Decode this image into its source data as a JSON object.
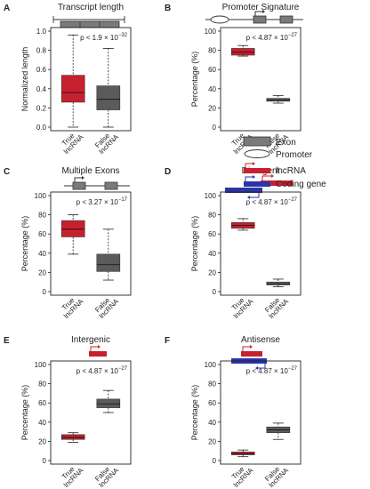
{
  "colors": {
    "lncrna": "#c8202f",
    "coding": "#2b35a8",
    "box_false": "#5b5b5b",
    "exon": "#7a7a7a"
  },
  "legend": {
    "exon": "Exon",
    "promoter": "Promoter",
    "lncrna": "lncRNA",
    "coding": "Coding gene"
  },
  "chart_data": [
    {
      "panel": "A",
      "type": "box",
      "title": "Transcript length",
      "ylabel": "Normalized length",
      "ylim": [
        0,
        1.0
      ],
      "yticks": [
        "0.0",
        "0.2",
        "0.4",
        "0.6",
        "0.8",
        "1.0"
      ],
      "categories": [
        "True lncRNA",
        "False lncRNA"
      ],
      "pvalue": "p < 1.9 × 10",
      "exponent": "−32",
      "boxes": [
        {
          "q1": 0.26,
          "median": 0.36,
          "q3": 0.54,
          "whisker_low": 0.0,
          "whisker_high": 0.96,
          "color": "#c8202f"
        },
        {
          "q1": 0.18,
          "median": 0.29,
          "q3": 0.43,
          "whisker_low": 0.0,
          "whisker_high": 0.82,
          "color": "#5b5b5b"
        }
      ],
      "schematic": "exons"
    },
    {
      "panel": "B",
      "type": "box",
      "title": "Promoter Signature",
      "ylabel": "Percentage (%)",
      "ylim": [
        0,
        100
      ],
      "yticks": [
        "0",
        "20",
        "40",
        "60",
        "80",
        "100"
      ],
      "categories": [
        "True lncRNA",
        "False lncRNA"
      ],
      "pvalue": "p < 4.87 × 10",
      "exponent": "−27",
      "boxes": [
        {
          "q1": 75,
          "median": 78,
          "q3": 82,
          "whisker_low": 74,
          "whisker_high": 85,
          "color": "#c8202f"
        },
        {
          "q1": 27,
          "median": 28,
          "q3": 30,
          "whisker_low": 25,
          "whisker_high": 33,
          "color": "#5b5b5b"
        }
      ],
      "schematic": "promoter"
    },
    {
      "panel": "C",
      "type": "box",
      "title": "Multiple Exons",
      "ylabel": "Percentage (%)",
      "ylim": [
        0,
        100
      ],
      "yticks": [
        "0",
        "20",
        "40",
        "60",
        "80",
        "100"
      ],
      "categories": [
        "True lncRNA",
        "False lncRNA"
      ],
      "pvalue": "p < 3.27 × 10",
      "exponent": "−17",
      "boxes": [
        {
          "q1": 57,
          "median": 65,
          "q3": 74,
          "whisker_low": 39,
          "whisker_high": 80,
          "color": "#c8202f"
        },
        {
          "q1": 21,
          "median": 28,
          "q3": 39,
          "whisker_low": 12,
          "whisker_high": 65,
          "color": "#5b5b5b"
        }
      ],
      "schematic": "multiexon"
    },
    {
      "panel": "D",
      "type": "box",
      "title": "Divergent",
      "ylabel": "Percentage (%)",
      "ylim": [
        0,
        100
      ],
      "yticks": [
        "0",
        "20",
        "40",
        "60",
        "80",
        "100"
      ],
      "categories": [
        "True lncRNA",
        "False lncRNA"
      ],
      "pvalue": "p < 4.87 × 10",
      "exponent": "−27",
      "boxes": [
        {
          "q1": 66,
          "median": 69,
          "q3": 72,
          "whisker_low": 64,
          "whisker_high": 76,
          "color": "#c8202f"
        },
        {
          "q1": 7,
          "median": 8,
          "q3": 10,
          "whisker_low": 5,
          "whisker_high": 13,
          "color": "#5b5b5b"
        }
      ],
      "schematic": "divergent"
    },
    {
      "panel": "E",
      "type": "box",
      "title": "Intergenic",
      "ylabel": "Percentage (%)",
      "ylim": [
        0,
        100
      ],
      "yticks": [
        "0",
        "20",
        "40",
        "60",
        "80",
        "100"
      ],
      "categories": [
        "True lncRNA",
        "False lncRNA"
      ],
      "pvalue": "p < 4.87 × 10",
      "exponent": "−27",
      "boxes": [
        {
          "q1": 22,
          "median": 24,
          "q3": 27,
          "whisker_low": 19,
          "whisker_high": 29,
          "color": "#c8202f"
        },
        {
          "q1": 55,
          "median": 59,
          "q3": 64,
          "whisker_low": 50,
          "whisker_high": 73,
          "color": "#5b5b5b"
        }
      ],
      "schematic": "intergenic"
    },
    {
      "panel": "F",
      "type": "box",
      "title": "Antisense",
      "ylabel": "Percentage (%)",
      "ylim": [
        0,
        100
      ],
      "yticks": [
        "0",
        "20",
        "40",
        "60",
        "80",
        "100"
      ],
      "categories": [
        "True lncRNA",
        "False lncRNA"
      ],
      "pvalue": "p < 4.87 × 10",
      "exponent": "−27",
      "boxes": [
        {
          "q1": 6,
          "median": 7,
          "q3": 9,
          "whisker_low": 4,
          "whisker_high": 11,
          "color": "#c8202f"
        },
        {
          "q1": 29,
          "median": 32,
          "q3": 35,
          "whisker_low": 22,
          "whisker_high": 39,
          "color": "#5b5b5b"
        }
      ],
      "schematic": "antisense"
    }
  ]
}
